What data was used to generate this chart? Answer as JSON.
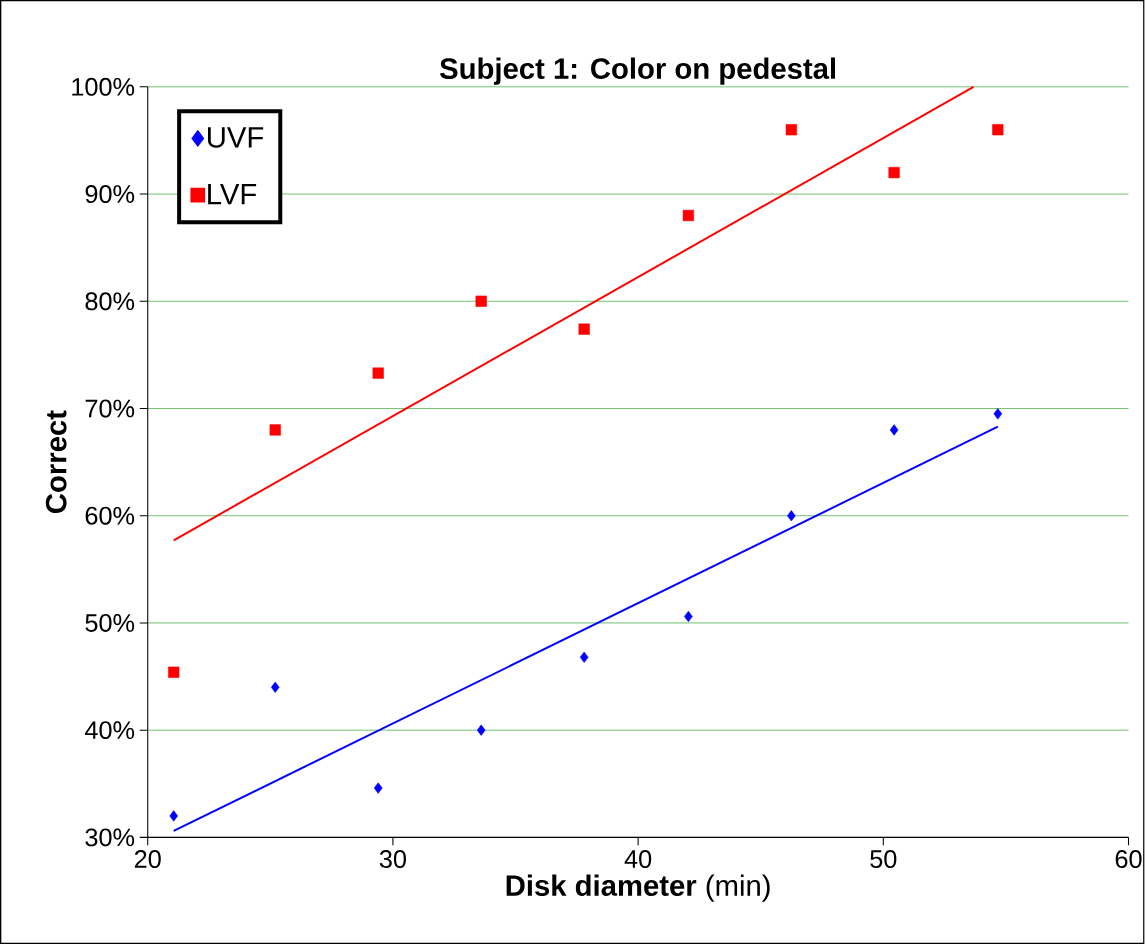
{
  "chart_data": {
    "type": "scatter",
    "title": "Subject 1: Color on pedestal",
    "xlabel": "**Disk diameter** (min)",
    "ylabel": "Correct",
    "series": [
      {
        "name": "UVF",
        "color": "#0000ff",
        "marker": "diamond",
        "x": [
          21.06,
          25.2,
          29.4,
          33.6,
          37.8,
          42.05,
          46.25,
          50.44,
          54.67
        ],
        "values": [
          32,
          44,
          34.6,
          40,
          46.8,
          50.6,
          60,
          68,
          69.5
        ]
      },
      {
        "name": "LVF",
        "color": "#ff0000",
        "marker": "square",
        "x": [
          21.06,
          25.2,
          29.4,
          33.6,
          37.8,
          42.05,
          46.25,
          50.44,
          54.67
        ],
        "values": [
          45.4,
          68,
          73.3,
          80,
          77.4,
          88,
          96,
          92,
          96
        ]
      },
      {
        "type": "line",
        "color": "#0000ff",
        "marker": "none",
        "x": [
          21.06,
          54.67
        ],
        "values": [
          30.6,
          68.3
        ]
      },
      {
        "type": "line",
        "color": "#ff0000",
        "marker": "none",
        "x": [
          21.06,
          53.68
        ],
        "values": [
          57.7,
          100
        ]
      }
    ],
    "xlim": [
      20,
      60
    ],
    "xticks": [
      20,
      30,
      40,
      50,
      60
    ],
    "ylim": [
      30,
      100
    ],
    "yticks": [
      {
        "value": 30,
        "label": "30%"
      },
      {
        "value": 40,
        "label": "40%"
      },
      {
        "value": 50,
        "label": "50%"
      },
      {
        "value": 60,
        "label": "60%"
      },
      {
        "value": 70,
        "label": "70%"
      },
      {
        "value": 80,
        "label": "80%"
      },
      {
        "value": 90,
        "label": "90%"
      },
      {
        "value": 100,
        "label": "100%"
      }
    ],
    "grid": "y",
    "legend": "top left"
  }
}
